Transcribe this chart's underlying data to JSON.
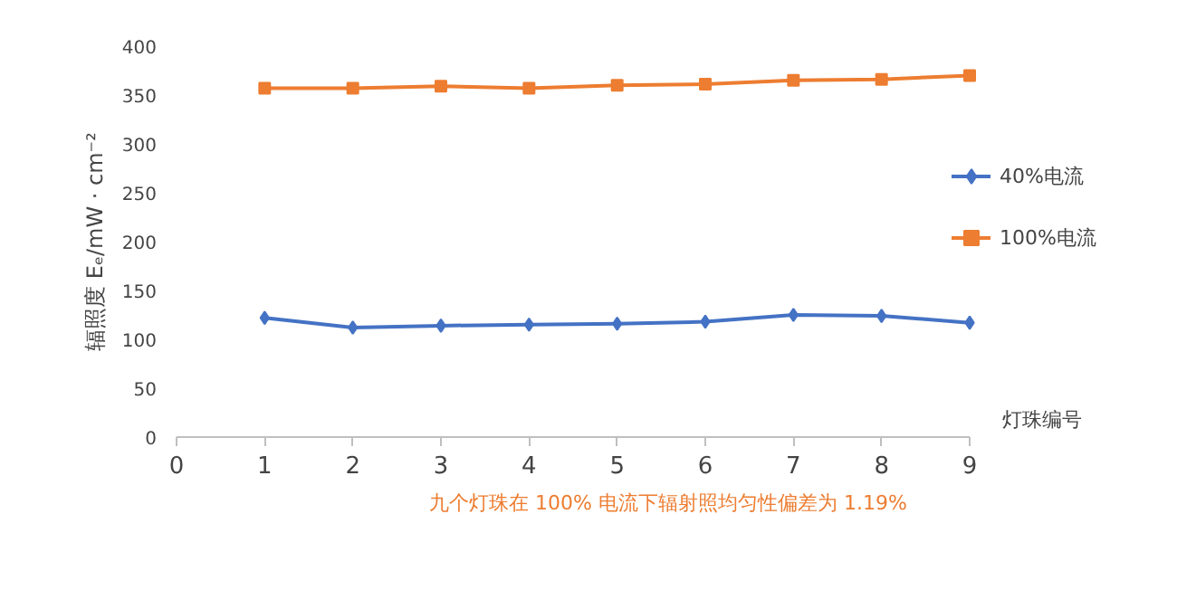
{
  "chart_data": {
    "type": "line",
    "xlabel": "灯珠编号",
    "ylabel": "辐照度 Eₑ/mW · cm⁻²",
    "x": [
      1,
      2,
      3,
      4,
      5,
      6,
      7,
      8,
      9
    ],
    "series": [
      {
        "name": "40%电流",
        "color": "#4472c4",
        "marker": "diamond",
        "values": [
          122,
          112,
          114,
          115,
          116,
          118,
          125,
          124,
          117
        ]
      },
      {
        "name": "100%电流",
        "color": "#ed7d31",
        "marker": "square",
        "values": [
          357,
          357,
          359,
          357,
          360,
          361,
          365,
          366,
          370
        ]
      }
    ],
    "xlim": [
      0,
      9
    ],
    "xticks": [
      0,
      1,
      2,
      3,
      4,
      5,
      6,
      7,
      8,
      9
    ],
    "ylim": [
      0,
      400
    ],
    "yticks": [
      0,
      50,
      100,
      150,
      200,
      250,
      300,
      350,
      400
    ],
    "grid": false,
    "legend": "right",
    "annotations": [
      "九个灯珠在 100% 电流下辐射照均匀性偏差为 1.19%"
    ]
  }
}
